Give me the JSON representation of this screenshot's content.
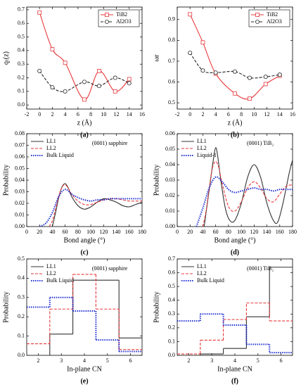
{
  "chart_data": [
    {
      "type": "line",
      "smooth": true,
      "panel": "(a)",
      "xlabel": "z (Å)",
      "ylabel": "qₜ(z)",
      "legend": "upper right",
      "legend_box": true,
      "xlim": [
        -2,
        16
      ],
      "xticks": [
        -2,
        0,
        2,
        4,
        6,
        8,
        10,
        12,
        14,
        16
      ],
      "ylim": [
        -0.03,
        0.72
      ],
      "yticks": [
        {
          "value": 0,
          "label": "0.0"
        },
        0.1,
        0.2,
        0.3,
        0.4,
        0.5,
        0.6,
        0.7
      ],
      "series": [
        {
          "name": "TiB2",
          "color": "#e8373a",
          "dash": "solid",
          "marker": "square",
          "x": [
            0,
            2,
            4,
            7,
            9.3,
            11.8,
            14
          ],
          "values": [
            0.68,
            0.41,
            0.31,
            0.04,
            0.25,
            0.1,
            0.19
          ]
        },
        {
          "name": "Al2O3",
          "color": "#222222",
          "dash": "dashed",
          "marker": "circle",
          "x": [
            0,
            2,
            4,
            7,
            9.3,
            11.8,
            14
          ],
          "values": [
            0.25,
            0.13,
            0.1,
            0.17,
            0.14,
            0.2,
            0.16
          ]
        }
      ]
    },
    {
      "type": "line",
      "smooth": true,
      "panel": "(b)",
      "xlabel": "z (Å)",
      "ylabel": "ωr",
      "legend": "upper right",
      "legend_box": true,
      "xlim": [
        -2,
        16
      ],
      "xticks": [
        -2,
        0,
        2,
        4,
        6,
        8,
        10,
        12,
        14,
        16
      ],
      "ylim": [
        0.47,
        0.96
      ],
      "yticks": [
        0.5,
        0.6,
        0.7,
        0.8,
        0.9
      ],
      "series": [
        {
          "name": "TiB2",
          "color": "#e8373a",
          "dash": "solid",
          "marker": "square",
          "x": [
            0,
            2,
            4,
            7,
            9.3,
            11.8,
            14
          ],
          "values": [
            0.925,
            0.79,
            0.64,
            0.545,
            0.52,
            0.59,
            0.63
          ]
        },
        {
          "name": "Al2O3",
          "color": "#222222",
          "dash": "dashed",
          "marker": "circle",
          "x": [
            0,
            2,
            4,
            7,
            9.3,
            11.8,
            14
          ],
          "values": [
            0.74,
            0.655,
            0.645,
            0.65,
            0.62,
            0.625,
            0.635
          ]
        }
      ]
    },
    {
      "type": "line",
      "smooth": true,
      "panel": "(c)",
      "xlabel": "Bond angle (°)",
      "ylabel": "Probability",
      "legend": "upper left",
      "legend_box": false,
      "annotation": "(0001) sapphire",
      "xlim": [
        0,
        180
      ],
      "xticks": [
        0,
        20,
        40,
        60,
        80,
        100,
        120,
        140,
        160,
        180
      ],
      "ylim": [
        0,
        0.08
      ],
      "yticks": [
        {
          "value": 0,
          "label": "0.00"
        },
        {
          "value": 0.01,
          "label": "0.01"
        },
        {
          "value": 0.02,
          "label": "0.02"
        },
        {
          "value": 0.03,
          "label": "0.03"
        },
        {
          "value": 0.04,
          "label": "0.04"
        },
        {
          "value": 0.05,
          "label": "0.05"
        },
        {
          "value": 0.06,
          "label": "0.06"
        },
        {
          "value": 0.07,
          "label": "0.07"
        },
        {
          "value": 0.08,
          "label": "0.08"
        }
      ],
      "series": [
        {
          "name": "LL1",
          "color": "#333333",
          "dash": "solid",
          "x": [
            40,
            45,
            50,
            55,
            60,
            65,
            70,
            80,
            90,
            100,
            110,
            120,
            130,
            140,
            150,
            160,
            170,
            180
          ],
          "values": [
            0,
            0.012,
            0.025,
            0.034,
            0.037,
            0.033,
            0.026,
            0.018,
            0.015,
            0.017,
            0.021,
            0.024,
            0.023,
            0.021,
            0.018,
            0.017,
            0.019,
            0.021
          ]
        },
        {
          "name": "LL2",
          "color": "#e8373a",
          "dash": "dashed",
          "x": [
            35,
            40,
            45,
            50,
            55,
            60,
            65,
            70,
            80,
            90,
            100,
            110,
            120,
            130,
            140,
            150,
            160,
            170,
            180
          ],
          "values": [
            0,
            0.005,
            0.015,
            0.026,
            0.034,
            0.036,
            0.033,
            0.028,
            0.022,
            0.019,
            0.019,
            0.021,
            0.023,
            0.024,
            0.024,
            0.023,
            0.022,
            0.022,
            0.022
          ]
        },
        {
          "name": "Bulk Liquid",
          "color": "#1f2fd0",
          "dash": "dotted",
          "x": [
            20,
            30,
            40,
            50,
            60,
            70,
            80,
            90,
            100,
            110,
            120,
            130,
            140,
            150,
            160,
            170,
            180
          ],
          "values": [
            0,
            0.003,
            0.012,
            0.026,
            0.032,
            0.028,
            0.025,
            0.023,
            0.022,
            0.023,
            0.023,
            0.024,
            0.024,
            0.024,
            0.024,
            0.024,
            0.024
          ]
        }
      ]
    },
    {
      "type": "line",
      "smooth": true,
      "panel": "(d)",
      "xlabel": "Bond angle (°)",
      "ylabel": "Probability",
      "legend": "upper left",
      "legend_box": false,
      "annotation": "(0001) TiB₂",
      "xlim": [
        0,
        180
      ],
      "xticks": [
        0,
        20,
        40,
        60,
        80,
        100,
        120,
        140,
        160,
        180
      ],
      "ylim": [
        0,
        0.06
      ],
      "yticks": [
        {
          "value": 0,
          "label": "0.00"
        },
        {
          "value": 0.01,
          "label": "0.01"
        },
        {
          "value": 0.02,
          "label": "0.02"
        },
        {
          "value": 0.03,
          "label": "0.03"
        },
        {
          "value": 0.04,
          "label": "0.04"
        },
        {
          "value": 0.05,
          "label": "0.05"
        },
        {
          "value": 0.06,
          "label": "0.06"
        }
      ],
      "series": [
        {
          "name": "LL1",
          "color": "#333333",
          "dash": "solid",
          "x": [
            42,
            47,
            52,
            57,
            60,
            63,
            68,
            75,
            82,
            90,
            100,
            110,
            120,
            130,
            140,
            150,
            157,
            165,
            175,
            180
          ],
          "values": [
            0,
            0.015,
            0.03,
            0.045,
            0.051,
            0.046,
            0.03,
            0.012,
            0.004,
            0.004,
            0.015,
            0.032,
            0.04,
            0.032,
            0.015,
            0.004,
            0.003,
            0.015,
            0.035,
            0.043
          ]
        },
        {
          "name": "LL2",
          "color": "#e8373a",
          "dash": "dashed",
          "x": [
            40,
            45,
            50,
            55,
            60,
            65,
            70,
            80,
            90,
            100,
            110,
            120,
            130,
            140,
            150,
            160,
            170,
            180
          ],
          "values": [
            0,
            0.01,
            0.025,
            0.038,
            0.042,
            0.038,
            0.028,
            0.013,
            0.01,
            0.016,
            0.025,
            0.029,
            0.025,
            0.018,
            0.016,
            0.021,
            0.026,
            0.027
          ]
        },
        {
          "name": "Liquid-1",
          "color": "#1f2fd0",
          "dash": "dotted",
          "x": [
            30,
            40,
            50,
            60,
            70,
            80,
            90,
            100,
            110,
            120,
            130,
            140,
            150,
            160,
            170,
            180
          ],
          "values": [
            0,
            0.012,
            0.025,
            0.032,
            0.029,
            0.024,
            0.022,
            0.023,
            0.024,
            0.025,
            0.024,
            0.024,
            0.023,
            0.024,
            0.024,
            0.024
          ]
        }
      ]
    },
    {
      "type": "histogram",
      "panel": "(e)",
      "xlabel": "In-plane CN",
      "ylabel": "Probability",
      "legend": "upper left",
      "legend_box": false,
      "annotation": "(0001) sapphire",
      "xlim": [
        1.5,
        6.5
      ],
      "xticks": [
        2,
        3,
        4,
        5,
        6
      ],
      "ylim": [
        0,
        0.5
      ],
      "yticks": [
        {
          "value": 0,
          "label": "0.0"
        },
        0.1,
        0.2,
        0.3,
        0.4,
        0.5
      ],
      "bins": [
        1.5,
        2.5,
        3.5,
        4.5,
        5.5,
        6.5
      ],
      "series": [
        {
          "name": "LL1",
          "color": "#333333",
          "dash": "solid",
          "values": [
            0,
            0.11,
            0.39,
            0.39,
            0.09
          ]
        },
        {
          "name": "LL2",
          "color": "#e8373a",
          "dash": "dashed",
          "values": [
            0.06,
            0.24,
            0.42,
            0.24,
            0.03
          ]
        },
        {
          "name": "Bulk Liquid",
          "color": "#1f2fd0",
          "dash": "dotted",
          "values": [
            0.25,
            0.3,
            0.23,
            0.08,
            0.02
          ]
        }
      ]
    },
    {
      "type": "histogram",
      "panel": "(f)",
      "xlabel": "In-plane CN",
      "ylabel": "Probability",
      "legend": "upper left",
      "legend_box": false,
      "annotation": "(0001) TiB₂",
      "xlim": [
        1.5,
        6.5
      ],
      "xticks": [
        2,
        3,
        4,
        5,
        6
      ],
      "ylim": [
        0,
        0.7
      ],
      "yticks": [
        {
          "value": 0,
          "label": "0.0"
        },
        0.1,
        0.2,
        0.3,
        0.4,
        0.5,
        0.6,
        0.7
      ],
      "bins": [
        1.5,
        2.5,
        3.5,
        4.5,
        5.5,
        6.5
      ],
      "series": [
        {
          "name": "LL1",
          "color": "#333333",
          "dash": "solid",
          "values": [
            0,
            0.01,
            0.05,
            0.28,
            0.64
          ]
        },
        {
          "name": "LL2",
          "color": "#e8373a",
          "dash": "dashed",
          "values": [
            0.01,
            0.11,
            0.26,
            0.38,
            0.25
          ]
        },
        {
          "name": "Bulk Liquid",
          "color": "#1f2fd0",
          "dash": "dotted",
          "values": [
            0.25,
            0.3,
            0.22,
            0.08,
            0.02
          ]
        }
      ]
    }
  ]
}
